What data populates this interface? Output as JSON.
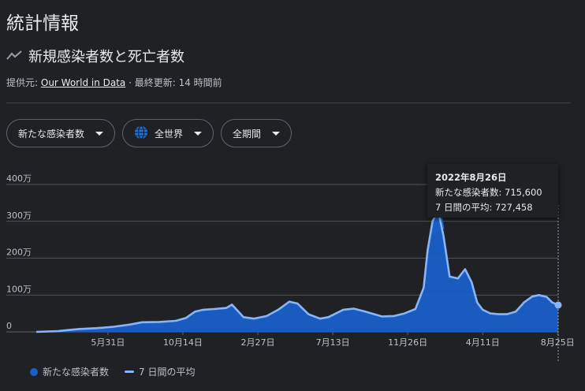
{
  "header": {
    "page_title": "統計情報",
    "subtitle": "新規感染者数と死亡者数",
    "source_prefix": "提供元:",
    "source_link": "Our World in Data",
    "updated": " · 最終更新: 14 時間前"
  },
  "filters": [
    {
      "label": "新たな感染者数"
    },
    {
      "label": "全世界",
      "icon": "globe-icon"
    },
    {
      "label": "全期間"
    }
  ],
  "tooltip": {
    "date": "2022年8月26日",
    "line1": "新たな感染者数: 715,600",
    "line2": "7 日間の平均: 727,458"
  },
  "legend": {
    "bars": "新たな感染者数",
    "line": "7 日間の平均"
  },
  "colors": {
    "area": "#1a5fc8",
    "line": "#8ab4f8",
    "grid": "#5f6368",
    "text": "#bdc1c6"
  },
  "chart_data": {
    "type": "area",
    "y_tick_labels": [
      "0",
      "100万",
      "200万",
      "300万",
      "400万"
    ],
    "y_ticks": [
      0,
      1000000,
      2000000,
      3000000,
      4000000
    ],
    "ylim": [
      0,
      4000000
    ],
    "x_tick_labels": [
      "5月31日",
      "10月14日",
      "2月27日",
      "7月13日",
      "11月26日",
      "4月11日",
      "8月25日"
    ],
    "x_tick_dates": [
      "2020-05-31",
      "2020-10-14",
      "2021-02-27",
      "2021-07-13",
      "2021-11-26",
      "2022-04-11",
      "2022-08-25"
    ],
    "xlim": [
      "2020-01-22",
      "2022-08-26"
    ],
    "series": [
      {
        "name": "7 日間の平均",
        "x": [
          "2020-01-22",
          "2020-03-01",
          "2020-03-20",
          "2020-04-10",
          "2020-05-10",
          "2020-06-10",
          "2020-07-10",
          "2020-08-01",
          "2020-09-01",
          "2020-10-01",
          "2020-10-20",
          "2020-11-05",
          "2020-11-20",
          "2020-12-10",
          "2021-01-01",
          "2021-01-11",
          "2021-02-01",
          "2021-02-20",
          "2021-03-15",
          "2021-04-05",
          "2021-04-25",
          "2021-05-10",
          "2021-05-30",
          "2021-06-20",
          "2021-07-05",
          "2021-08-01",
          "2021-08-20",
          "2021-09-10",
          "2021-10-10",
          "2021-11-01",
          "2021-11-20",
          "2021-12-10",
          "2021-12-25",
          "2022-01-01",
          "2022-01-10",
          "2022-01-20",
          "2022-01-30",
          "2022-02-10",
          "2022-02-25",
          "2022-03-10",
          "2022-03-22",
          "2022-04-01",
          "2022-04-11",
          "2022-04-25",
          "2022-05-10",
          "2022-05-25",
          "2022-06-10",
          "2022-06-25",
          "2022-07-10",
          "2022-07-22",
          "2022-08-05",
          "2022-08-15",
          "2022-08-26"
        ],
        "values": [
          0,
          20000,
          50000,
          80000,
          100000,
          140000,
          200000,
          260000,
          270000,
          300000,
          380000,
          550000,
          600000,
          620000,
          650000,
          740000,
          400000,
          360000,
          430000,
          600000,
          820000,
          770000,
          480000,
          360000,
          400000,
          600000,
          630000,
          550000,
          420000,
          430000,
          500000,
          620000,
          1200000,
          2200000,
          3000000,
          3300000,
          2600000,
          1500000,
          1450000,
          1700000,
          1350000,
          800000,
          600000,
          500000,
          480000,
          480000,
          550000,
          800000,
          960000,
          1000000,
          950000,
          800000,
          727458
        ]
      },
      {
        "name": "新たな感染者数",
        "peak_date": "2022-01-20",
        "peak_value": 3800000
      }
    ]
  }
}
